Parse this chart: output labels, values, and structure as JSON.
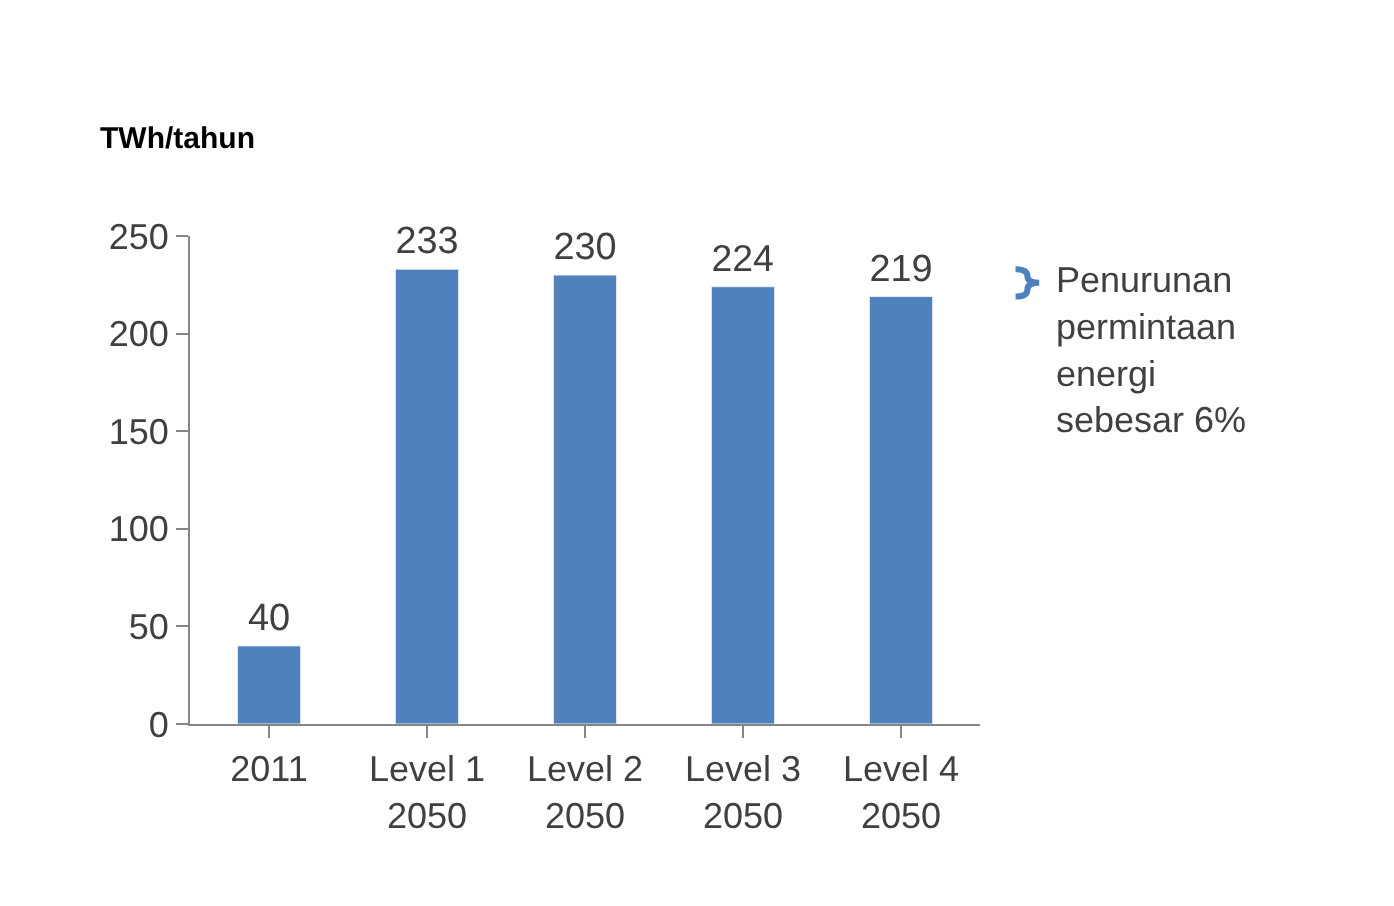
{
  "chart_data": {
    "type": "bar",
    "ylabel": "TWh/tahun",
    "categories": [
      "2011",
      "Level 1\n2050",
      "Level 2\n2050",
      "Level 3\n2050",
      "Level 4\n2050"
    ],
    "values": [
      40,
      233,
      230,
      224,
      219
    ],
    "color": "#4f81bd",
    "ylim": [
      0,
      250
    ],
    "yticks": [
      0,
      50,
      100,
      150,
      200,
      250
    ],
    "legend": false,
    "data_labels": true,
    "annotations": [
      "Penurunan\npermintaan\nenergi\nsebesar 6%"
    ]
  }
}
